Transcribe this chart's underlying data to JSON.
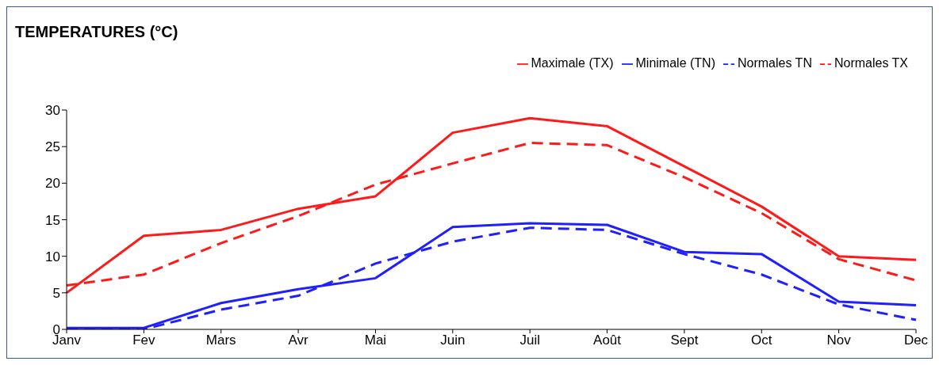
{
  "chart_data": {
    "type": "line",
    "title": "TEMPERATURES (°C)",
    "categories": [
      "Janv",
      "Fev",
      "Mars",
      "Avr",
      "Mai",
      "Juin",
      "Juil",
      "Août",
      "Sept",
      "Oct",
      "Nov",
      "Dec"
    ],
    "series": [
      {
        "name": "Minimale (TN)",
        "color": "#1f1fff",
        "line_style": "solid",
        "values": [
          0.2,
          0.2,
          3.6,
          5.5,
          7.0,
          14.0,
          14.5,
          14.3,
          10.6,
          10.3,
          3.8,
          3.3
        ]
      },
      {
        "name": "Maximale (TX)",
        "color": "#ff1a1a",
        "line_style": "solid",
        "values": [
          5.0,
          12.8,
          13.6,
          16.5,
          18.2,
          26.9,
          28.9,
          27.8,
          22.3,
          16.8,
          10.0,
          9.5
        ]
      },
      {
        "name": "Normales TN",
        "color": "#1f1fff",
        "line_style": "dashed",
        "values": [
          0.0,
          0.0,
          2.7,
          4.6,
          9.0,
          12.0,
          13.9,
          13.6,
          10.3,
          7.5,
          3.4,
          1.3
        ]
      },
      {
        "name": "Normales TX",
        "color": "#ff1a1a",
        "line_style": "dashed",
        "values": [
          6.0,
          7.5,
          11.8,
          15.5,
          19.8,
          22.7,
          25.5,
          25.2,
          20.8,
          15.9,
          9.6,
          6.7
        ]
      }
    ],
    "ylim": [
      0,
      30
    ],
    "yticks": [
      0,
      5,
      10,
      15,
      20,
      25,
      30
    ],
    "grid": false,
    "legend": "top right",
    "marker": "none"
  }
}
